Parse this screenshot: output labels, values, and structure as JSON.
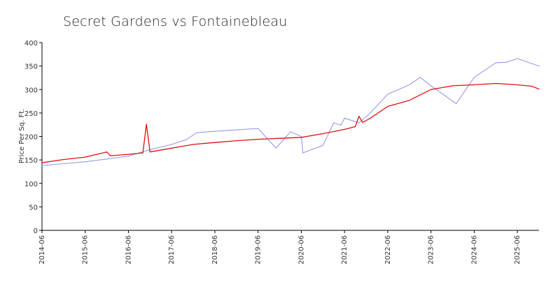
{
  "chart_data": {
    "type": "line",
    "title": "Secret Gardens vs Fontainebleau",
    "xlabel": "",
    "ylabel": "Price Per Sq. Ft.",
    "xlim": [
      "2014-06",
      "2025-12"
    ],
    "ylim": [
      0,
      400
    ],
    "yticks": [
      0,
      50,
      100,
      150,
      200,
      250,
      300,
      350,
      400
    ],
    "xticks": [
      "2014-06",
      "2015-06",
      "2016-06",
      "2017-06",
      "2018-06",
      "2019-06",
      "2020-06",
      "2021-06",
      "2022-06",
      "2023-06",
      "2024-06",
      "2025-06"
    ],
    "grid": false,
    "legend": "none",
    "series": [
      {
        "color": "#9999ee",
        "points": [
          [
            "2014-06",
            138
          ],
          [
            "2014-12",
            142
          ],
          [
            "2015-06",
            146
          ],
          [
            "2015-12",
            152
          ],
          [
            "2016-06",
            158
          ],
          [
            "2016-09",
            165
          ],
          [
            "2016-12",
            172
          ],
          [
            "2017-06",
            183
          ],
          [
            "2017-10",
            193
          ],
          [
            "2018-01",
            208
          ],
          [
            "2018-06",
            211
          ],
          [
            "2018-12",
            214
          ],
          [
            "2019-06",
            217
          ],
          [
            "2019-11",
            175
          ],
          [
            "2020-03",
            210
          ],
          [
            "2020-06",
            200
          ],
          [
            "2020-06-15",
            165
          ],
          [
            "2020-12",
            181
          ],
          [
            "2021-03",
            229
          ],
          [
            "2021-05",
            224
          ],
          [
            "2021-06",
            239
          ],
          [
            "2021-10",
            229
          ],
          [
            "2022-01",
            249
          ],
          [
            "2022-06",
            290
          ],
          [
            "2022-12",
            310
          ],
          [
            "2023-03",
            326
          ],
          [
            "2023-06",
            308
          ],
          [
            "2024-01",
            270
          ],
          [
            "2024-06",
            326
          ],
          [
            "2024-12",
            357
          ],
          [
            "2025-03",
            358
          ],
          [
            "2025-06",
            366
          ],
          [
            "2025-12",
            350
          ]
        ]
      },
      {
        "color": "#dd1111",
        "points": [
          [
            "2014-06",
            144
          ],
          [
            "2014-12",
            151
          ],
          [
            "2015-06",
            156
          ],
          [
            "2015-12",
            167
          ],
          [
            "2016-01",
            159
          ],
          [
            "2016-06",
            162
          ],
          [
            "2016-10",
            165
          ],
          [
            "2016-11",
            226
          ],
          [
            "2016-12",
            167
          ],
          [
            "2017-06",
            175
          ],
          [
            "2017-12",
            183
          ],
          [
            "2018-06",
            187
          ],
          [
            "2018-12",
            191
          ],
          [
            "2019-06",
            194
          ],
          [
            "2019-12",
            196
          ],
          [
            "2020-06",
            198
          ],
          [
            "2020-12",
            206
          ],
          [
            "2021-06",
            215
          ],
          [
            "2021-09",
            221
          ],
          [
            "2021-10",
            243
          ],
          [
            "2021-11",
            230
          ],
          [
            "2022-01",
            238
          ],
          [
            "2022-06",
            264
          ],
          [
            "2022-12",
            277
          ],
          [
            "2023-06",
            300
          ],
          [
            "2023-12",
            308
          ],
          [
            "2024-06",
            310
          ],
          [
            "2024-12",
            313
          ],
          [
            "2025-06",
            310
          ],
          [
            "2025-10",
            307
          ],
          [
            "2025-12",
            301
          ]
        ]
      }
    ]
  }
}
